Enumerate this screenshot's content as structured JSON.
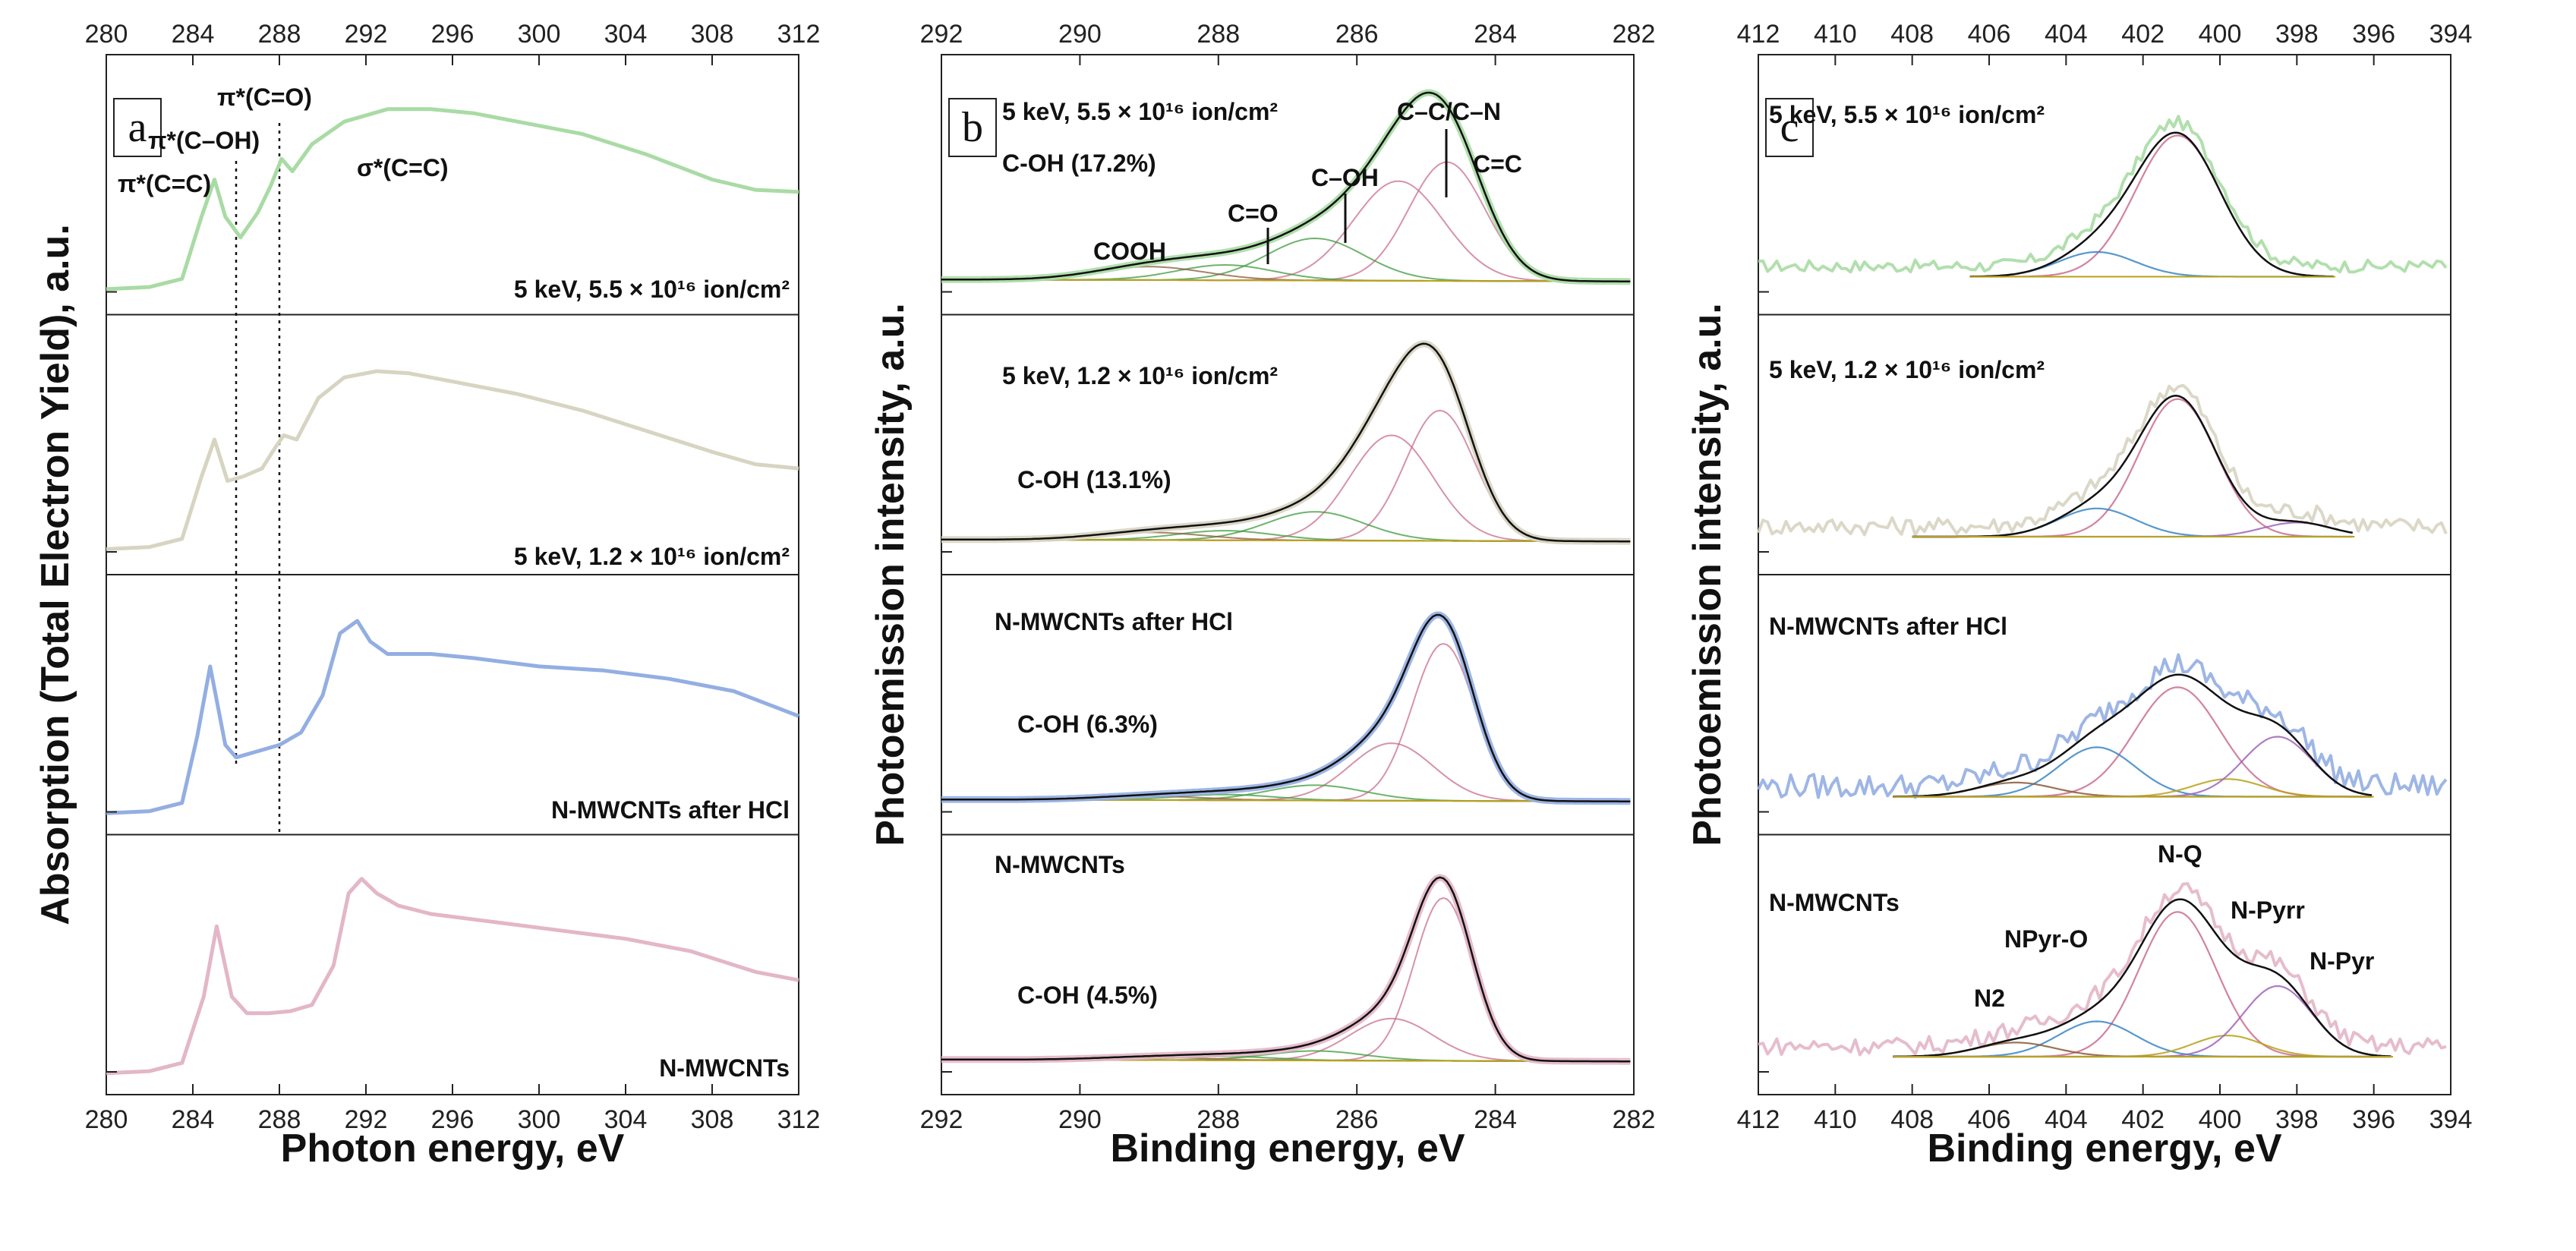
{
  "colors": {
    "green": "#a9dba4",
    "beige": "#d7d4c2",
    "blue": "#93aee2",
    "pink": "#e3b6c8",
    "fit_black": "#111111",
    "comp_pink": "#c96d8e",
    "comp_green": "#3c9a3c",
    "comp_blue": "#3a86c4",
    "comp_yellow": "#b8a21a",
    "comp_brown": "#8a5a3a"
  },
  "chart_data": [
    {
      "id": "a",
      "type": "line",
      "panel_label": "a",
      "xlabel": "Photon energy, eV",
      "ylabel": "Absorption (Total Electron Yield), a.u.",
      "xlim": [
        280,
        312
      ],
      "x_ticks": [
        "280",
        "284",
        "288",
        "292",
        "296",
        "300",
        "304",
        "308",
        "312"
      ],
      "x_tick_values": [
        280,
        284,
        288,
        292,
        296,
        300,
        304,
        308,
        312
      ],
      "dotted_lines_x": [
        286.0,
        288.0
      ],
      "peak_annotations": [
        "π*(C=C)",
        "π*(C–OH)",
        "π*(C=O)",
        "σ*(C=C)"
      ],
      "subplots": [
        {
          "label": "5 keV, 5.5 × 10¹⁶ ion/cm²",
          "color_key": "green",
          "x": [
            280,
            282,
            283.5,
            284.4,
            285.0,
            285.5,
            286.2,
            287.0,
            287.6,
            288.1,
            288.6,
            289.5,
            291,
            293,
            295,
            297,
            299,
            302,
            305,
            308,
            310,
            312
          ],
          "y": [
            0.05,
            0.06,
            0.1,
            0.4,
            0.58,
            0.4,
            0.3,
            0.42,
            0.55,
            0.68,
            0.62,
            0.75,
            0.86,
            0.92,
            0.92,
            0.9,
            0.86,
            0.8,
            0.7,
            0.58,
            0.53,
            0.52
          ]
        },
        {
          "label": "5 keV, 1.2 × 10¹⁶ ion/cm²",
          "color_key": "beige",
          "x": [
            280,
            282,
            283.5,
            284.4,
            285.0,
            285.6,
            286.3,
            287.2,
            287.8,
            288.2,
            288.8,
            289.8,
            291,
            292.5,
            294,
            296,
            299,
            302,
            305,
            308,
            310,
            312
          ],
          "y": [
            0.05,
            0.06,
            0.1,
            0.4,
            0.58,
            0.38,
            0.4,
            0.44,
            0.54,
            0.6,
            0.58,
            0.78,
            0.88,
            0.91,
            0.9,
            0.86,
            0.8,
            0.72,
            0.62,
            0.52,
            0.46,
            0.44
          ]
        },
        {
          "label": "N-MWCNTs after HCl",
          "color_key": "blue",
          "x": [
            280,
            282,
            283.5,
            284.2,
            284.8,
            285.5,
            286.0,
            287.0,
            288.0,
            289.0,
            290.0,
            290.8,
            291.6,
            292.2,
            293,
            295,
            297,
            300,
            303,
            306,
            309,
            312
          ],
          "y": [
            0.03,
            0.04,
            0.08,
            0.4,
            0.74,
            0.36,
            0.3,
            0.33,
            0.36,
            0.42,
            0.6,
            0.9,
            0.96,
            0.86,
            0.8,
            0.8,
            0.78,
            0.74,
            0.72,
            0.68,
            0.62,
            0.5
          ]
        },
        {
          "label": "N-MWCNTs",
          "color_key": "pink",
          "x": [
            280,
            282,
            283.5,
            284.5,
            285.1,
            285.8,
            286.5,
            287.5,
            288.5,
            289.5,
            290.5,
            291.2,
            291.8,
            292.5,
            293.5,
            295,
            298,
            301,
            304,
            307,
            310,
            312
          ],
          "y": [
            0.03,
            0.04,
            0.08,
            0.4,
            0.74,
            0.4,
            0.32,
            0.32,
            0.33,
            0.36,
            0.55,
            0.9,
            0.97,
            0.9,
            0.84,
            0.8,
            0.76,
            0.72,
            0.68,
            0.62,
            0.52,
            0.48
          ]
        }
      ]
    },
    {
      "id": "b",
      "type": "line",
      "panel_label": "b",
      "xlabel": "Binding energy,  eV",
      "ylabel": "Photoemission intensity, a.u.",
      "xlim": [
        292,
        282
      ],
      "x_ticks": [
        "292",
        "290",
        "288",
        "286",
        "284",
        "282"
      ],
      "x_tick_values": [
        292,
        290,
        288,
        286,
        284,
        282
      ],
      "subplots": [
        {
          "label": "5 keV, 5.5 × 10¹⁶ ion/cm²",
          "color_key": "green",
          "coh": "C-OH (17.2%)",
          "annotations": [
            "COOH",
            "C=O",
            "C–OH",
            "C–C/C–N",
            "C=C"
          ],
          "components": [
            {
              "name": "C=C",
              "center": 284.7,
              "width": 0.55,
              "amp": 0.62
            },
            {
              "name": "C-C/C-N",
              "center": 285.4,
              "width": 0.65,
              "amp": 0.52
            },
            {
              "name": "C-OH",
              "center": 286.6,
              "width": 0.7,
              "amp": 0.22
            },
            {
              "name": "C=O",
              "center": 287.9,
              "width": 0.7,
              "amp": 0.08
            },
            {
              "name": "COOH",
              "center": 289.0,
              "width": 0.8,
              "amp": 0.07
            }
          ]
        },
        {
          "label": "5 keV, 1.2 × 10¹⁶ ion/cm²",
          "color_key": "beige",
          "coh": "C-OH (13.1%)",
          "components": [
            {
              "name": "C=C",
              "center": 284.8,
              "width": 0.5,
              "amp": 0.68
            },
            {
              "name": "C-C/C-N",
              "center": 285.5,
              "width": 0.6,
              "amp": 0.55
            },
            {
              "name": "C-OH",
              "center": 286.6,
              "width": 0.7,
              "amp": 0.15
            },
            {
              "name": "C=O",
              "center": 287.9,
              "width": 0.7,
              "amp": 0.05
            },
            {
              "name": "COOH",
              "center": 289.0,
              "width": 0.8,
              "amp": 0.04
            }
          ]
        },
        {
          "label": "N-MWCNTs after HCl",
          "color_key": "blue",
          "coh": "C-OH (6.3%)",
          "components": [
            {
              "name": "C=C",
              "center": 284.75,
              "width": 0.45,
              "amp": 0.82
            },
            {
              "name": "C-C/C-N",
              "center": 285.5,
              "width": 0.6,
              "amp": 0.3
            },
            {
              "name": "C-OH",
              "center": 286.6,
              "width": 0.7,
              "amp": 0.08
            },
            {
              "name": "C=O",
              "center": 287.9,
              "width": 0.7,
              "amp": 0.03
            },
            {
              "name": "COOH",
              "center": 289.0,
              "width": 0.8,
              "amp": 0.02
            }
          ]
        },
        {
          "label": "N-MWCNTs",
          "color_key": "pink",
          "coh": "C-OH (4.5%)",
          "components": [
            {
              "name": "C=C",
              "center": 284.75,
              "width": 0.42,
              "amp": 0.85
            },
            {
              "name": "C-C/C-N",
              "center": 285.5,
              "width": 0.6,
              "amp": 0.22
            },
            {
              "name": "C-OH",
              "center": 286.6,
              "width": 0.7,
              "amp": 0.05
            },
            {
              "name": "C=O",
              "center": 287.9,
              "width": 0.7,
              "amp": 0.02
            },
            {
              "name": "COOH",
              "center": 289.0,
              "width": 0.8,
              "amp": 0.015
            }
          ]
        }
      ]
    },
    {
      "id": "c",
      "type": "line",
      "panel_label": "c",
      "xlabel": "Binding energy,  eV",
      "ylabel": "Photoemission intensity, a.u.",
      "xlim": [
        412,
        394
      ],
      "x_ticks": [
        "412",
        "410",
        "408",
        "406",
        "404",
        "402",
        "400",
        "398",
        "396",
        "394"
      ],
      "x_tick_values": [
        412,
        410,
        408,
        406,
        404,
        402,
        400,
        398,
        396,
        394
      ],
      "subplots": [
        {
          "label": "5 keV, 5.5 × 10¹⁶ ion/cm²",
          "color_key": "green",
          "noise": 0.035,
          "fit_range": [
            406.5,
            397.0
          ],
          "components": [
            {
              "name": "N-Q",
              "center": 401.1,
              "width": 1.1,
              "amp": 0.8
            },
            {
              "name": "NPyr-O",
              "center": 403.2,
              "width": 1.0,
              "amp": 0.14
            }
          ]
        },
        {
          "label": "5 keV, 1.2 × 10¹⁶ ion/cm²",
          "color_key": "beige",
          "noise": 0.05,
          "fit_range": [
            408.0,
            396.5
          ],
          "components": [
            {
              "name": "N-Q",
              "center": 401.1,
              "width": 1.0,
              "amp": 0.78
            },
            {
              "name": "NPyr-O",
              "center": 403.2,
              "width": 1.0,
              "amp": 0.16
            },
            {
              "name": "N-Pyr",
              "center": 398.0,
              "width": 0.9,
              "amp": 0.08
            }
          ]
        },
        {
          "label": "N-MWCNTs after HCl",
          "color_key": "blue",
          "noise": 0.07,
          "fit_range": [
            408.5,
            396.0
          ],
          "components": [
            {
              "name": "N-Q",
              "center": 401.1,
              "width": 1.1,
              "amp": 0.62
            },
            {
              "name": "NPyr-O",
              "center": 403.2,
              "width": 1.0,
              "amp": 0.28
            },
            {
              "name": "N-Pyrr",
              "center": 399.8,
              "width": 0.9,
              "amp": 0.1
            },
            {
              "name": "N-Pyr",
              "center": 398.5,
              "width": 0.9,
              "amp": 0.34
            },
            {
              "name": "N2",
              "center": 405.3,
              "width": 1.0,
              "amp": 0.08
            }
          ]
        },
        {
          "label": "N-MWCNTs",
          "color_key": "pink",
          "noise": 0.05,
          "fit_range": [
            408.5,
            395.5
          ],
          "annotations": [
            "N-Q",
            "N-Pyrr",
            "NPyr-O",
            "N-Pyr",
            "N2"
          ],
          "components": [
            {
              "name": "N-Q",
              "center": 401.1,
              "width": 1.0,
              "amp": 0.82
            },
            {
              "name": "NPyr-O",
              "center": 403.2,
              "width": 1.0,
              "amp": 0.2
            },
            {
              "name": "N-Pyrr",
              "center": 399.8,
              "width": 0.9,
              "amp": 0.12
            },
            {
              "name": "N-Pyr",
              "center": 398.5,
              "width": 0.9,
              "amp": 0.4
            },
            {
              "name": "N2",
              "center": 405.3,
              "width": 1.0,
              "amp": 0.08
            }
          ]
        }
      ]
    }
  ]
}
